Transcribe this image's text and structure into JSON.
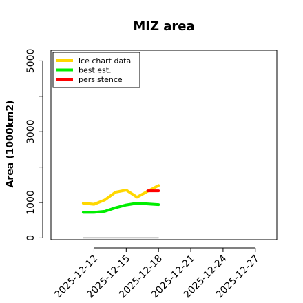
{
  "chart_data": {
    "type": "line",
    "title": "MIZ area",
    "ylabel": "Area (1000km2)",
    "xlabel": "",
    "ylim": [
      -50,
      5300
    ],
    "xlim": [
      "2025-12-08",
      "2025-12-29"
    ],
    "y_ticks": [
      0,
      1000,
      3000,
      5000
    ],
    "y_tick_labels": [
      "0",
      "1000",
      "3000",
      "5000"
    ],
    "y_minor_ticks": [
      2000,
      4000
    ],
    "x_ticks": [
      "2025-12-12",
      "2025-12-15",
      "2025-12-18",
      "2025-12-21",
      "2025-12-24",
      "2025-12-27"
    ],
    "x_tick_labels": [
      "2025-12-12",
      "2025-12-15",
      "2025-12-18",
      "2025-12-21",
      "2025-12-24",
      "2025-12-27"
    ],
    "grid": false,
    "legend_position": "top-left",
    "series": [
      {
        "name": "ice chart data",
        "color": "#FFD700",
        "x": [
          "2025-12-11",
          "2025-12-12",
          "2025-12-13",
          "2025-12-14",
          "2025-12-15",
          "2025-12-16",
          "2025-12-17",
          "2025-12-18"
        ],
        "values": [
          980,
          950,
          1070,
          1290,
          1350,
          1150,
          1320,
          1480
        ]
      },
      {
        "name": "best est.",
        "color": "#00EE00",
        "x": [
          "2025-12-11",
          "2025-12-12",
          "2025-12-13",
          "2025-12-14",
          "2025-12-15",
          "2025-12-16",
          "2025-12-17",
          "2025-12-18"
        ],
        "values": [
          720,
          720,
          750,
          850,
          930,
          980,
          960,
          940
        ]
      },
      {
        "name": "persistence",
        "color": "#FF0000",
        "x": [
          "2025-12-17",
          "2025-12-18"
        ],
        "values": [
          1330,
          1330
        ]
      },
      {
        "name": "",
        "color": "#808080",
        "x": [
          "2025-12-11",
          "2025-12-18"
        ],
        "values": [
          0,
          0
        ]
      }
    ]
  }
}
